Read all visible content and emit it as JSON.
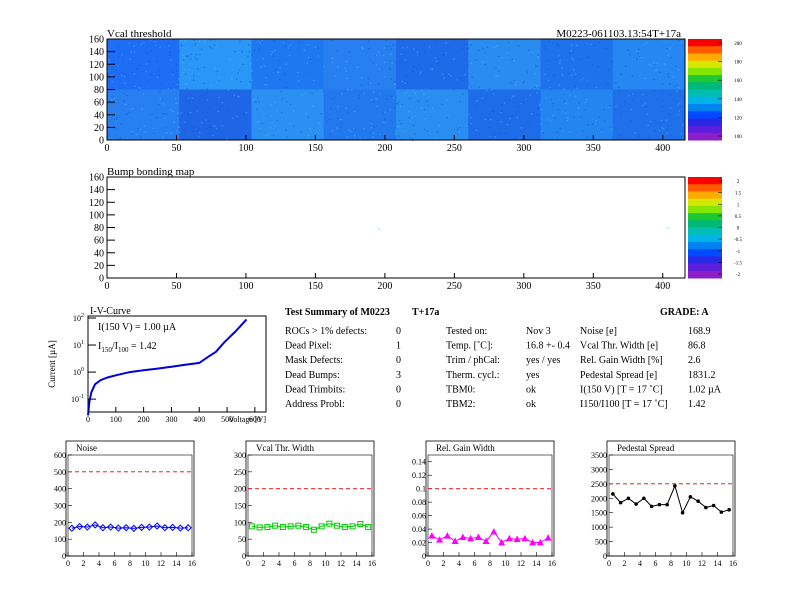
{
  "header": {
    "vcal_title": "Vcal threshold",
    "module_id": "M0223-061103.13:54T+17a"
  },
  "palette": [
    "#ff0000",
    "#ff5a00",
    "#ffaa00",
    "#d7e600",
    "#82e600",
    "#1ec832",
    "#00b978",
    "#00beb4",
    "#00b4e6",
    "#0082f0",
    "#004bff",
    "#2828e6",
    "#5a1edc",
    "#8c1ec8"
  ],
  "vcal_map": {
    "title": "Vcal threshold",
    "x_range": [
      0,
      416
    ],
    "y_range": [
      0,
      160
    ],
    "x_ticks": [
      "0",
      "50",
      "100",
      "150",
      "200",
      "250",
      "300",
      "350",
      "400"
    ],
    "y_ticks": [
      "0",
      "20",
      "40",
      "60",
      "80",
      "100",
      "120",
      "140",
      "160"
    ],
    "colorbar_labels": [
      "200",
      "180",
      "160",
      "140",
      "120",
      "100"
    ],
    "roc_blocks": [
      {
        "row": 0,
        "shades": [
          "#1e6ef5",
          "#2a96f5",
          "#1e78f0",
          "#2880f0",
          "#1e6ae8",
          "#2a8cf0",
          "#1e72ec",
          "#2686f2"
        ]
      },
      {
        "row": 1,
        "shades": [
          "#2880f0",
          "#1e66e6",
          "#2a90f2",
          "#2478ee",
          "#2a8ef0",
          "#1e6ce8",
          "#2484f0",
          "#2070ea"
        ]
      }
    ]
  },
  "bump_map": {
    "title": "Bump bonding map",
    "x_range": [
      0,
      416
    ],
    "y_range": [
      0,
      160
    ],
    "x_ticks": [
      "0",
      "50",
      "100",
      "150",
      "200",
      "250",
      "300",
      "350",
      "400"
    ],
    "y_ticks": [
      "0",
      "20",
      "40",
      "60",
      "80",
      "100",
      "120",
      "140",
      "160"
    ],
    "colorbar_labels": [
      "2",
      "1.5",
      "1",
      "0.5",
      "0",
      "-0.5",
      "-1",
      "-1.5",
      "-2"
    ]
  },
  "iv_curve": {
    "title": "I-V-Curve",
    "ylabel": "Current [µA]",
    "xlabel": "Voltage [V]",
    "x_ticks": [
      "0",
      "100",
      "200",
      "300",
      "400",
      "500",
      "600"
    ],
    "y_tick_exponents": [
      "2",
      "",
      "",
      "-1"
    ],
    "ann_1": "I(150 V) = 1.00 µA",
    "ann_2_a": "I",
    "ann_2_sub1": "150",
    "ann_2_b": "/I",
    "ann_2_sub2": "100",
    "ann_2_c": " = 1.42"
  },
  "summary": {
    "title": "Test Summary of M0223",
    "temp_tag": "T+17a",
    "grade": "GRADE:  A",
    "col1": [
      {
        "label": "ROCs > 1% defects:",
        "value": "0"
      },
      {
        "label": "Dead Pixel:",
        "value": "1"
      },
      {
        "label": "Mask Defects:",
        "value": "0"
      },
      {
        "label": "Dead Bumps:",
        "value": "3"
      },
      {
        "label": "Dead Trimbits:",
        "value": "0"
      },
      {
        "label": "Address Probl:",
        "value": "0"
      }
    ],
    "col2": [
      {
        "label": "Tested on:",
        "value": "Nov 3"
      },
      {
        "label": "Temp. [˚C]:",
        "value": "16.8 +- 0.4"
      },
      {
        "label": "Trim / phCal:",
        "value": "yes / yes"
      },
      {
        "label": "Therm. cycl.:",
        "value": "yes"
      },
      {
        "label": "TBM0:",
        "value": "ok"
      },
      {
        "label": "TBM2:",
        "value": "ok"
      }
    ],
    "col3": [
      {
        "label": "Noise [e]",
        "value": "168.9"
      },
      {
        "label": "Vcal Thr. Width [e]",
        "value": "86.8"
      },
      {
        "label": "Rel. Gain Width [%]",
        "value": "2.6"
      },
      {
        "label": "Pedestal Spread [e]",
        "value": "1831.2"
      },
      {
        "label": "I(150 V) [T = 17 ˚C]",
        "value": "1.02 µA"
      },
      {
        "label": "I150/I100   [T = 17 ˚C]",
        "value": "1.42"
      }
    ]
  },
  "chart_data": [
    {
      "type": "line",
      "title": "Noise",
      "color": "#0000ff",
      "marker": "diamond",
      "x": [
        0.5,
        1.5,
        2.5,
        3.5,
        4.5,
        5.5,
        6.5,
        7.5,
        8.5,
        9.5,
        10.5,
        11.5,
        12.5,
        13.5,
        14.5,
        15.5
      ],
      "values": [
        165,
        175,
        172,
        185,
        168,
        172,
        166,
        168,
        164,
        170,
        172,
        178,
        168,
        170,
        166,
        168
      ],
      "xlim": [
        0,
        16
      ],
      "ylim": [
        0,
        600
      ],
      "limit": 500,
      "x_ticks": [
        "0",
        "2",
        "4",
        "6",
        "8",
        "10",
        "12",
        "14",
        "16"
      ],
      "y_ticks": [
        "0",
        "100",
        "200",
        "300",
        "400",
        "500",
        "600"
      ]
    },
    {
      "type": "line",
      "title": "Vcal Thr. Width",
      "color": "#00cc00",
      "marker": "square",
      "x": [
        0.5,
        1.5,
        2.5,
        3.5,
        4.5,
        5.5,
        6.5,
        7.5,
        8.5,
        9.5,
        10.5,
        11.5,
        12.5,
        13.5,
        14.5,
        15.5
      ],
      "values": [
        88,
        85,
        86,
        90,
        86,
        88,
        90,
        86,
        78,
        88,
        96,
        90,
        86,
        88,
        95,
        86
      ],
      "xlim": [
        0,
        16
      ],
      "ylim": [
        0,
        300
      ],
      "limit": 200,
      "x_ticks": [
        "0",
        "2",
        "4",
        "6",
        "8",
        "10",
        "12",
        "14",
        "16"
      ],
      "y_ticks": [
        "0",
        "50",
        "100",
        "150",
        "200",
        "250",
        "300"
      ]
    },
    {
      "type": "line",
      "title": "Rel. Gain Width",
      "color": "#ff00ff",
      "marker": "triangle",
      "x": [
        0.5,
        1.5,
        2.5,
        3.5,
        4.5,
        5.5,
        6.5,
        7.5,
        8.5,
        9.5,
        10.5,
        11.5,
        12.5,
        13.5,
        14.5,
        15.5
      ],
      "values": [
        0.03,
        0.024,
        0.03,
        0.022,
        0.028,
        0.026,
        0.028,
        0.022,
        0.036,
        0.02,
        0.026,
        0.025,
        0.026,
        0.02,
        0.02,
        0.027
      ],
      "xlim": [
        0,
        16
      ],
      "ylim": [
        0,
        0.15
      ],
      "limit": 0.1,
      "x_ticks": [
        "0",
        "2",
        "4",
        "6",
        "8",
        "10",
        "12",
        "14",
        "16"
      ],
      "y_ticks": [
        "0",
        "0.02",
        "0.04",
        "0.06",
        "0.08",
        "0.1",
        "0.12",
        "0.14"
      ],
      "y_tick_values": [
        0,
        0.02,
        0.04,
        0.06,
        0.08,
        0.1,
        0.12,
        0.14
      ]
    },
    {
      "type": "line",
      "title": "Pedestal Spread",
      "color": "#000000",
      "marker": "circle",
      "x": [
        0.5,
        1.5,
        2.5,
        3.5,
        4.5,
        5.5,
        6.5,
        7.5,
        8.5,
        9.5,
        10.5,
        11.5,
        12.5,
        13.5,
        14.5,
        15.5
      ],
      "values": [
        2150,
        1850,
        2000,
        1800,
        2000,
        1720,
        1780,
        1780,
        2430,
        1500,
        2050,
        1900,
        1680,
        1750,
        1520,
        1600
      ],
      "xlim": [
        0,
        16
      ],
      "ylim": [
        0,
        3500
      ],
      "limit": 2500,
      "x_ticks": [
        "0",
        "2",
        "4",
        "6",
        "8",
        "10",
        "12",
        "14",
        "16"
      ],
      "y_ticks": [
        "0",
        "500",
        "1000",
        "1500",
        "2000",
        "2500",
        "3000",
        "3500"
      ]
    }
  ]
}
